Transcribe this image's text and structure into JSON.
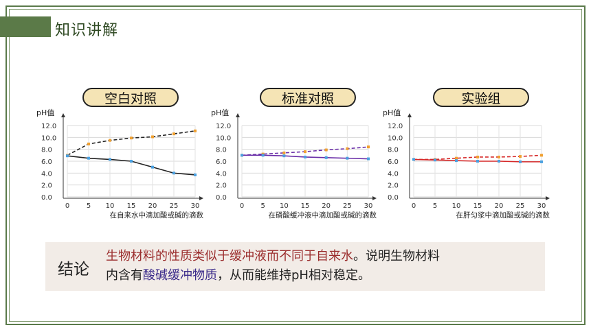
{
  "header": {
    "title": "知识讲解"
  },
  "charts": [
    {
      "badge": "空白对照",
      "y_axis_label": "pH值",
      "x_axis_label": "在自来水中滴加酸或碱的滴数",
      "yticks": [
        "12.0",
        "10.0",
        "8.0",
        "6.0",
        "4.0",
        "2.0",
        "0.0"
      ],
      "xticks": [
        "0",
        "5",
        "10",
        "15",
        "20",
        "25",
        "30"
      ]
    },
    {
      "badge": "标准对照",
      "y_axis_label": "pH值",
      "x_axis_label": "在磷酸缓冲液中滴加酸或碱的滴数",
      "yticks": [
        "12.0",
        "10.0",
        "8.0",
        "6.0",
        "4.0",
        "2.0",
        "0.0"
      ],
      "xticks": [
        "0",
        "5",
        "10",
        "15",
        "20",
        "25",
        "30"
      ]
    },
    {
      "badge": "实验组",
      "y_axis_label": "pH值",
      "x_axis_label": "在肝匀浆中滴加酸或碱的滴数",
      "yticks": [
        "12.0",
        "10.0",
        "8.0",
        "6.0",
        "4.0",
        "2.0",
        "0.0"
      ],
      "xticks": [
        "0",
        "5",
        "10",
        "15",
        "20",
        "25",
        "30"
      ]
    }
  ],
  "chart_data": [
    {
      "type": "line",
      "x": [
        0,
        5,
        10,
        15,
        20,
        25,
        30
      ],
      "series": [
        {
          "values": [
            7.0,
            8.9,
            9.5,
            9.9,
            10.1,
            10.6,
            11.1
          ],
          "color": "#222222",
          "dash": true,
          "marker_color": "#f0a030"
        },
        {
          "values": [
            6.9,
            6.5,
            6.3,
            6.0,
            5.0,
            4.0,
            3.7
          ],
          "color": "#222222",
          "dash": false,
          "marker_color": "#4aa0e0"
        }
      ],
      "ylim": [
        0,
        12
      ],
      "xlim": [
        0,
        30
      ],
      "grid": true
    },
    {
      "type": "line",
      "x": [
        0,
        5,
        10,
        15,
        20,
        25,
        30
      ],
      "series": [
        {
          "values": [
            7.0,
            7.2,
            7.4,
            7.6,
            7.9,
            8.1,
            8.4
          ],
          "color": "#6a2fa8",
          "dash": true,
          "marker_color": "#f0a030"
        },
        {
          "values": [
            7.0,
            7.0,
            6.9,
            6.7,
            6.6,
            6.5,
            6.4
          ],
          "color": "#6a2fa8",
          "dash": false,
          "marker_color": "#4aa0e0"
        }
      ],
      "ylim": [
        0,
        12
      ],
      "xlim": [
        0,
        30
      ],
      "grid": true
    },
    {
      "type": "line",
      "x": [
        0,
        5,
        10,
        15,
        20,
        25,
        30
      ],
      "series": [
        {
          "values": [
            6.3,
            6.3,
            6.5,
            6.7,
            6.7,
            6.8,
            7.0
          ],
          "color": "#d62828",
          "dash": true,
          "marker_color": "#f0a030"
        },
        {
          "values": [
            6.3,
            6.2,
            6.1,
            6.0,
            6.0,
            5.9,
            5.9
          ],
          "color": "#d62828",
          "dash": false,
          "marker_color": "#4aa0e0"
        }
      ],
      "ylim": [
        0,
        12
      ],
      "xlim": [
        0,
        30
      ],
      "grid": true
    }
  ],
  "conclusion": {
    "label": "结论",
    "line1_red": "生物材料的性质类似于缓冲液而不同于自来水",
    "line1_rest": "。说明生物材料",
    "line2_start": "内含有",
    "line2_blue": "酸碱缓冲物质",
    "line2_rest": "，从而能维持pH相对稳定。"
  }
}
